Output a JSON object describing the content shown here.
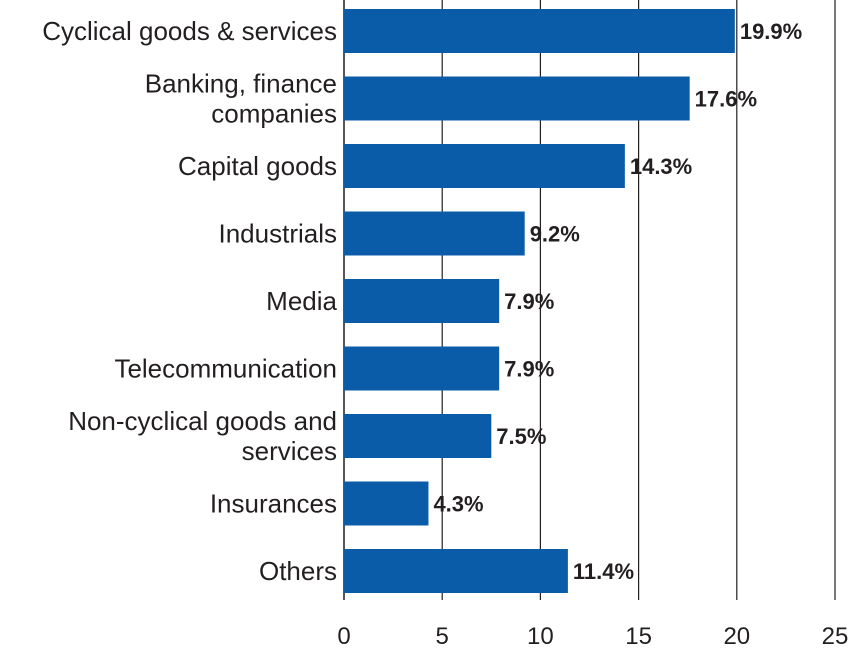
{
  "chart_data": {
    "type": "bar",
    "orientation": "horizontal",
    "categories": [
      [
        "Cyclical goods & services"
      ],
      [
        "Banking, finance",
        "companies"
      ],
      [
        "Capital goods"
      ],
      [
        "Industrials"
      ],
      [
        "Media"
      ],
      [
        "Telecommunication"
      ],
      [
        "Non-cyclical goods and",
        "services"
      ],
      [
        "Insurances"
      ],
      [
        "Others"
      ]
    ],
    "values": [
      19.9,
      17.6,
      14.3,
      9.2,
      7.9,
      7.9,
      7.5,
      4.3,
      11.4
    ],
    "value_labels": [
      "19.9%",
      "17.6%",
      "14.3%",
      "9.2%",
      "7.9%",
      "7.9%",
      "7.5%",
      "4.3%",
      "11.4%"
    ],
    "xlim": [
      0,
      25
    ],
    "xticks": [
      0,
      5,
      10,
      15,
      20,
      25
    ],
    "grid": "vertical",
    "bar_color": "#0a5ca8",
    "text_color": "#231f20",
    "grid_color": "#231f20"
  }
}
